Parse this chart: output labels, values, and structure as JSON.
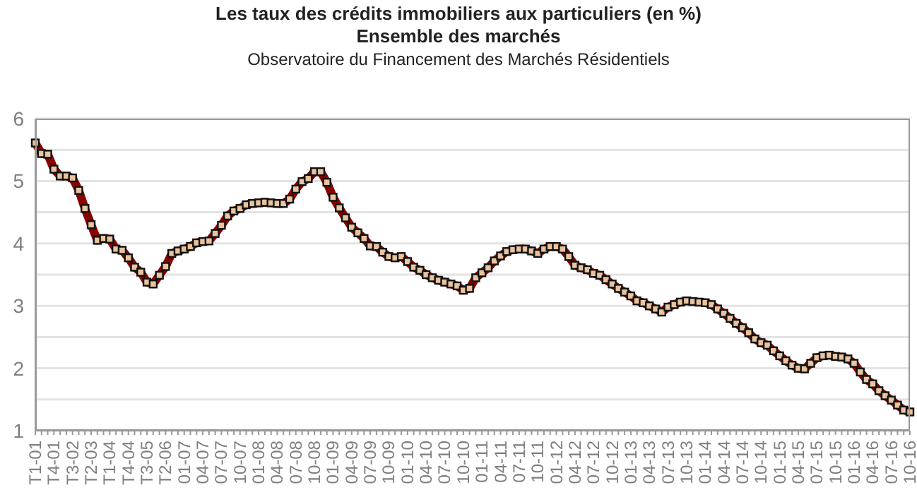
{
  "chart_data": {
    "type": "line",
    "title": "Les taux des crédits immobiliers aux particuliers (en %)",
    "subtitle": "Ensemble des marchés",
    "annotations": [
      "Observatoire du Financement des Marchés Résidentiels"
    ],
    "categories": [
      "T1-01",
      null,
      null,
      "T4-01",
      null,
      null,
      "T3-02",
      null,
      null,
      "T2-03",
      null,
      null,
      "T1-04",
      null,
      null,
      "T4-04",
      null,
      null,
      "T3-05",
      null,
      null,
      "T2-06",
      null,
      null,
      "01-07",
      null,
      null,
      "04-07",
      null,
      null,
      "07-07",
      null,
      null,
      "10-07",
      null,
      null,
      "01-08",
      null,
      null,
      "04-08",
      null,
      null,
      "07-08",
      null,
      null,
      "10-08",
      null,
      null,
      "01-09",
      null,
      null,
      "04-09",
      null,
      null,
      "07-09",
      null,
      null,
      "10-09",
      null,
      null,
      "01-10",
      null,
      null,
      "04-10",
      null,
      null,
      "07-10",
      null,
      null,
      "10-10",
      null,
      null,
      "01-11",
      null,
      null,
      "04-11",
      null,
      null,
      "07-11",
      null,
      null,
      "10-11",
      null,
      null,
      "01-12",
      null,
      null,
      "04-12",
      null,
      null,
      "07-12",
      null,
      null,
      "10-12",
      null,
      null,
      "01-13",
      null,
      null,
      "04-13",
      null,
      null,
      "07-13",
      null,
      null,
      "10-13",
      null,
      null,
      "01-14",
      null,
      null,
      "04-14",
      null,
      null,
      "07-14",
      null,
      null,
      "10-14",
      null,
      null,
      "01-15",
      null,
      null,
      "04-15",
      null,
      null,
      "07-15",
      null,
      null,
      "10-15",
      null,
      null,
      "01-16",
      null,
      null,
      "04-16",
      null,
      null,
      "07-16",
      null,
      null,
      "10-16"
    ],
    "series": [
      {
        "color": "#8b0000",
        "values": [
          5.61,
          5.44,
          5.43,
          5.19,
          5.08,
          5.08,
          5.05,
          4.85,
          4.56,
          4.3,
          4.05,
          4.08,
          4.07,
          3.91,
          3.89,
          3.77,
          3.62,
          3.54,
          3.38,
          3.35,
          3.49,
          3.63,
          3.84,
          3.88,
          3.91,
          3.95,
          4.01,
          4.03,
          4.04,
          4.16,
          4.29,
          4.44,
          4.52,
          4.56,
          4.62,
          4.64,
          4.65,
          4.66,
          4.65,
          4.64,
          4.64,
          4.71,
          4.87,
          4.99,
          5.04,
          5.15,
          5.15,
          4.98,
          4.74,
          4.57,
          4.41,
          4.26,
          4.17,
          4.08,
          3.96,
          3.95,
          3.86,
          3.79,
          3.77,
          3.79,
          3.71,
          3.62,
          3.57,
          3.5,
          3.45,
          3.41,
          3.38,
          3.35,
          3.32,
          3.25,
          3.28,
          3.45,
          3.53,
          3.61,
          3.72,
          3.8,
          3.87,
          3.9,
          3.91,
          3.91,
          3.88,
          3.84,
          3.91,
          3.95,
          3.95,
          3.91,
          3.79,
          3.65,
          3.61,
          3.58,
          3.52,
          3.49,
          3.42,
          3.35,
          3.28,
          3.22,
          3.16,
          3.08,
          3.05,
          3.0,
          2.95,
          2.9,
          2.98,
          3.02,
          3.06,
          3.08,
          3.07,
          3.06,
          3.05,
          3.02,
          2.95,
          2.88,
          2.8,
          2.72,
          2.65,
          2.57,
          2.47,
          2.41,
          2.37,
          2.28,
          2.2,
          2.12,
          2.05,
          2.0,
          1.99,
          2.08,
          2.17,
          2.2,
          2.21,
          2.19,
          2.18,
          2.15,
          2.08,
          1.94,
          1.82,
          1.75,
          1.64,
          1.56,
          1.49,
          1.41,
          1.33,
          1.3
        ]
      }
    ],
    "ylim": [
      1,
      6
    ],
    "yticks": [
      1,
      {
        "value": 1.5,
        "label": null
      },
      2,
      {
        "value": 2.5,
        "label": null
      },
      3,
      {
        "value": 3.5,
        "label": null
      },
      4,
      {
        "value": 4.5,
        "label": null
      },
      5,
      {
        "value": 5.5,
        "label": null
      },
      6
    ],
    "grid": "y",
    "marker": "square",
    "line_style": "solid"
  }
}
